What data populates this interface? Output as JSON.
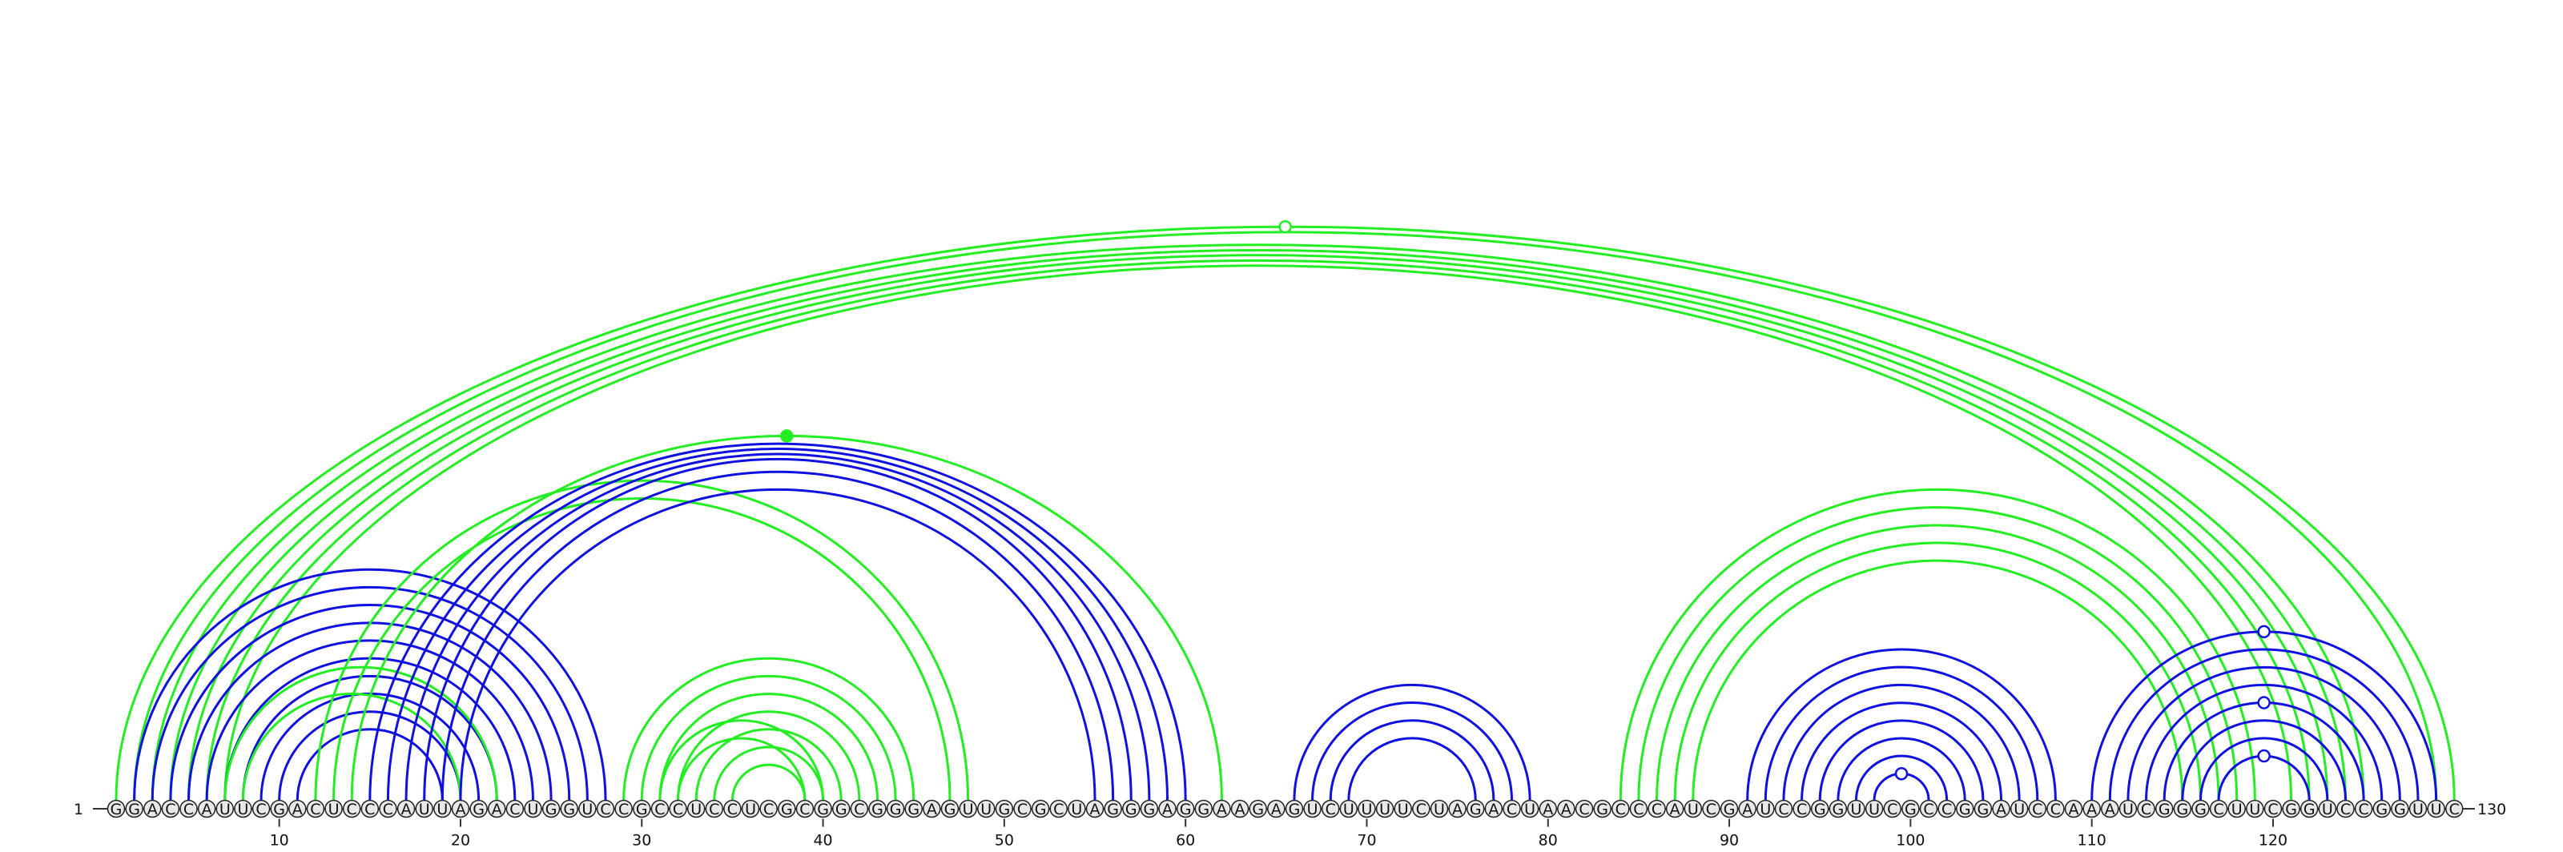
{
  "diagram": {
    "type": "rna-arc-diagram",
    "sequence": "GGACCAUUCGACUCCCAUUAGACUGGUCCGCCUCCUCGCGGCGGGAGUUGCGCUAGGGAGGAAGAGUCUUUUCUAGACUAACGCCCAUCGAUCCGGUUCGCCGGAUCCAAAUCGGGCUUCGGUCCGGUUC",
    "start_label": "1",
    "end_label": "130",
    "tick_labels": [
      "10",
      "20",
      "30",
      "40",
      "50",
      "60",
      "70",
      "80",
      "90",
      "100",
      "110",
      "120"
    ],
    "colors": {
      "blue": "#1010e0",
      "green": "#22ee22",
      "backbone": "#333333",
      "circle_fill": "#e8e8e8"
    },
    "arcs": [
      {
        "i": 1,
        "j": 130,
        "c": "green"
      },
      {
        "i": 2,
        "j": 129,
        "c": "green"
      },
      {
        "i": 3,
        "j": 125,
        "c": "green"
      },
      {
        "i": 4,
        "j": 124,
        "c": "green"
      },
      {
        "i": 5,
        "j": 123,
        "c": "green"
      },
      {
        "i": 6,
        "j": 122,
        "c": "green"
      },
      {
        "i": 7,
        "j": 121,
        "c": "green"
      },
      {
        "i": 2,
        "j": 28,
        "c": "blue"
      },
      {
        "i": 3,
        "j": 27,
        "c": "blue"
      },
      {
        "i": 4,
        "j": 26,
        "c": "blue"
      },
      {
        "i": 5,
        "j": 25,
        "c": "blue"
      },
      {
        "i": 6,
        "j": 24,
        "c": "blue"
      },
      {
        "i": 7,
        "j": 23,
        "c": "blue"
      },
      {
        "i": 8,
        "j": 22,
        "c": "blue"
      },
      {
        "i": 9,
        "j": 21,
        "c": "blue"
      },
      {
        "i": 10,
        "j": 20,
        "c": "blue"
      },
      {
        "i": 11,
        "j": 19,
        "c": "blue"
      },
      {
        "i": 7,
        "j": 22,
        "c": "green"
      },
      {
        "i": 8,
        "j": 20,
        "c": "green"
      },
      {
        "i": 12,
        "j": 48,
        "c": "green"
      },
      {
        "i": 13,
        "j": 47,
        "c": "green"
      },
      {
        "i": 14,
        "j": 62,
        "c": "green"
      },
      {
        "i": 15,
        "j": 60,
        "c": "blue"
      },
      {
        "i": 16,
        "j": 59,
        "c": "blue"
      },
      {
        "i": 17,
        "j": 58,
        "c": "blue"
      },
      {
        "i": 18,
        "j": 57,
        "c": "blue"
      },
      {
        "i": 19,
        "j": 56,
        "c": "blue"
      },
      {
        "i": 20,
        "j": 55,
        "c": "blue"
      },
      {
        "i": 29,
        "j": 45,
        "c": "green"
      },
      {
        "i": 30,
        "j": 44,
        "c": "green"
      },
      {
        "i": 31,
        "j": 43,
        "c": "green"
      },
      {
        "i": 32,
        "j": 42,
        "c": "green"
      },
      {
        "i": 33,
        "j": 41,
        "c": "green"
      },
      {
        "i": 34,
        "j": 40,
        "c": "green"
      },
      {
        "i": 35,
        "j": 39,
        "c": "green"
      },
      {
        "i": 31,
        "j": 40,
        "c": "green"
      },
      {
        "i": 32,
        "j": 39,
        "c": "green"
      },
      {
        "i": 66,
        "j": 79,
        "c": "blue"
      },
      {
        "i": 67,
        "j": 78,
        "c": "blue"
      },
      {
        "i": 68,
        "j": 77,
        "c": "blue"
      },
      {
        "i": 69,
        "j": 76,
        "c": "blue"
      },
      {
        "i": 84,
        "j": 119,
        "c": "green"
      },
      {
        "i": 85,
        "j": 118,
        "c": "green"
      },
      {
        "i": 86,
        "j": 117,
        "c": "green"
      },
      {
        "i": 87,
        "j": 116,
        "c": "green"
      },
      {
        "i": 88,
        "j": 115,
        "c": "green"
      },
      {
        "i": 91,
        "j": 108,
        "c": "blue"
      },
      {
        "i": 92,
        "j": 107,
        "c": "blue"
      },
      {
        "i": 93,
        "j": 106,
        "c": "blue"
      },
      {
        "i": 94,
        "j": 105,
        "c": "blue"
      },
      {
        "i": 95,
        "j": 104,
        "c": "blue"
      },
      {
        "i": 96,
        "j": 103,
        "c": "blue"
      },
      {
        "i": 97,
        "j": 102,
        "c": "blue"
      },
      {
        "i": 98,
        "j": 101,
        "c": "blue"
      },
      {
        "i": 110,
        "j": 129,
        "c": "blue"
      },
      {
        "i": 111,
        "j": 128,
        "c": "blue"
      },
      {
        "i": 112,
        "j": 127,
        "c": "blue"
      },
      {
        "i": 113,
        "j": 126,
        "c": "blue"
      },
      {
        "i": 114,
        "j": 125,
        "c": "blue"
      },
      {
        "i": 115,
        "j": 124,
        "c": "blue"
      },
      {
        "i": 116,
        "j": 123,
        "c": "blue"
      },
      {
        "i": 117,
        "j": 122,
        "c": "blue"
      }
    ],
    "markers": [
      {
        "i": 1,
        "j": 130,
        "filled": false,
        "c": "green"
      },
      {
        "i": 14,
        "j": 62,
        "filled": true,
        "c": "green"
      },
      {
        "i": 98,
        "j": 101,
        "filled": false,
        "c": "blue"
      },
      {
        "i": 110,
        "j": 129,
        "filled": false,
        "c": "blue"
      },
      {
        "i": 114,
        "j": 125,
        "filled": false,
        "c": "blue"
      },
      {
        "i": 117,
        "j": 122,
        "filled": false,
        "c": "blue"
      }
    ]
  }
}
